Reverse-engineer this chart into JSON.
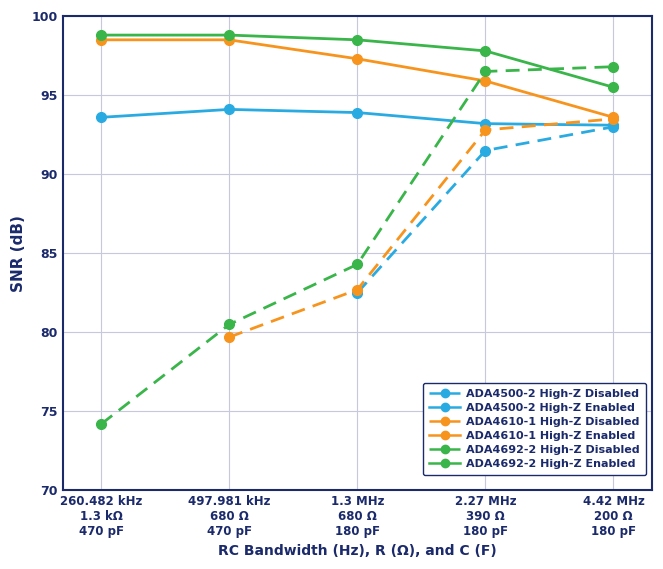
{
  "x_positions": [
    0,
    1,
    2,
    3,
    4
  ],
  "x_tick_labels": [
    "260.482 kHz\n1.3 kΩ\n470 pF",
    "497.981 kHz\n680 Ω\n470 pF",
    "1.3 MHz\n680 Ω\n180 pF",
    "2.27 MHz\n390 Ω\n180 pF",
    "4.42 MHz\n200 Ω\n180 pF"
  ],
  "series": [
    {
      "label": "ADA4500-2 High-Z Disabled",
      "color": "#29ABE2",
      "linestyle": "dashed",
      "marker": "o",
      "y": [
        null,
        null,
        82.5,
        91.5,
        93.0
      ]
    },
    {
      "label": "ADA4500-2 High-Z Enabled",
      "color": "#29ABE2",
      "linestyle": "solid",
      "marker": "o",
      "y": [
        93.6,
        94.1,
        93.9,
        93.2,
        93.1
      ]
    },
    {
      "label": "ADA4610-1 High-Z Disabled",
      "color": "#F7941D",
      "linestyle": "dashed",
      "marker": "o",
      "y": [
        null,
        79.7,
        82.7,
        92.8,
        93.5
      ]
    },
    {
      "label": "ADA4610-1 High-Z Enabled",
      "color": "#F7941D",
      "linestyle": "solid",
      "marker": "o",
      "y": [
        98.5,
        98.5,
        97.3,
        95.9,
        93.6
      ]
    },
    {
      "label": "ADA4692-2 High-Z Disabled",
      "color": "#39B54A",
      "linestyle": "dashed",
      "marker": "o",
      "y": [
        74.2,
        80.5,
        84.3,
        96.5,
        96.8
      ]
    },
    {
      "label": "ADA4692-2 High-Z Enabled",
      "color": "#39B54A",
      "linestyle": "solid",
      "marker": "o",
      "y": [
        98.8,
        98.8,
        98.5,
        97.8,
        95.5
      ]
    }
  ],
  "ylabel": "SNR (dB)",
  "xlabel": "RC Bandwidth (Hz), R (Ω), and C (F)",
  "ylim": [
    70,
    100
  ],
  "yticks": [
    70,
    75,
    80,
    85,
    90,
    95,
    100
  ],
  "background_color": "#FFFFFF",
  "grid_color": "#C8C8DC",
  "spine_color": "#1B2A6B",
  "axis_label_color": "#1B2A6B",
  "tick_label_color": "#1B2A6B",
  "legend_text_color": "#1B2A6B"
}
